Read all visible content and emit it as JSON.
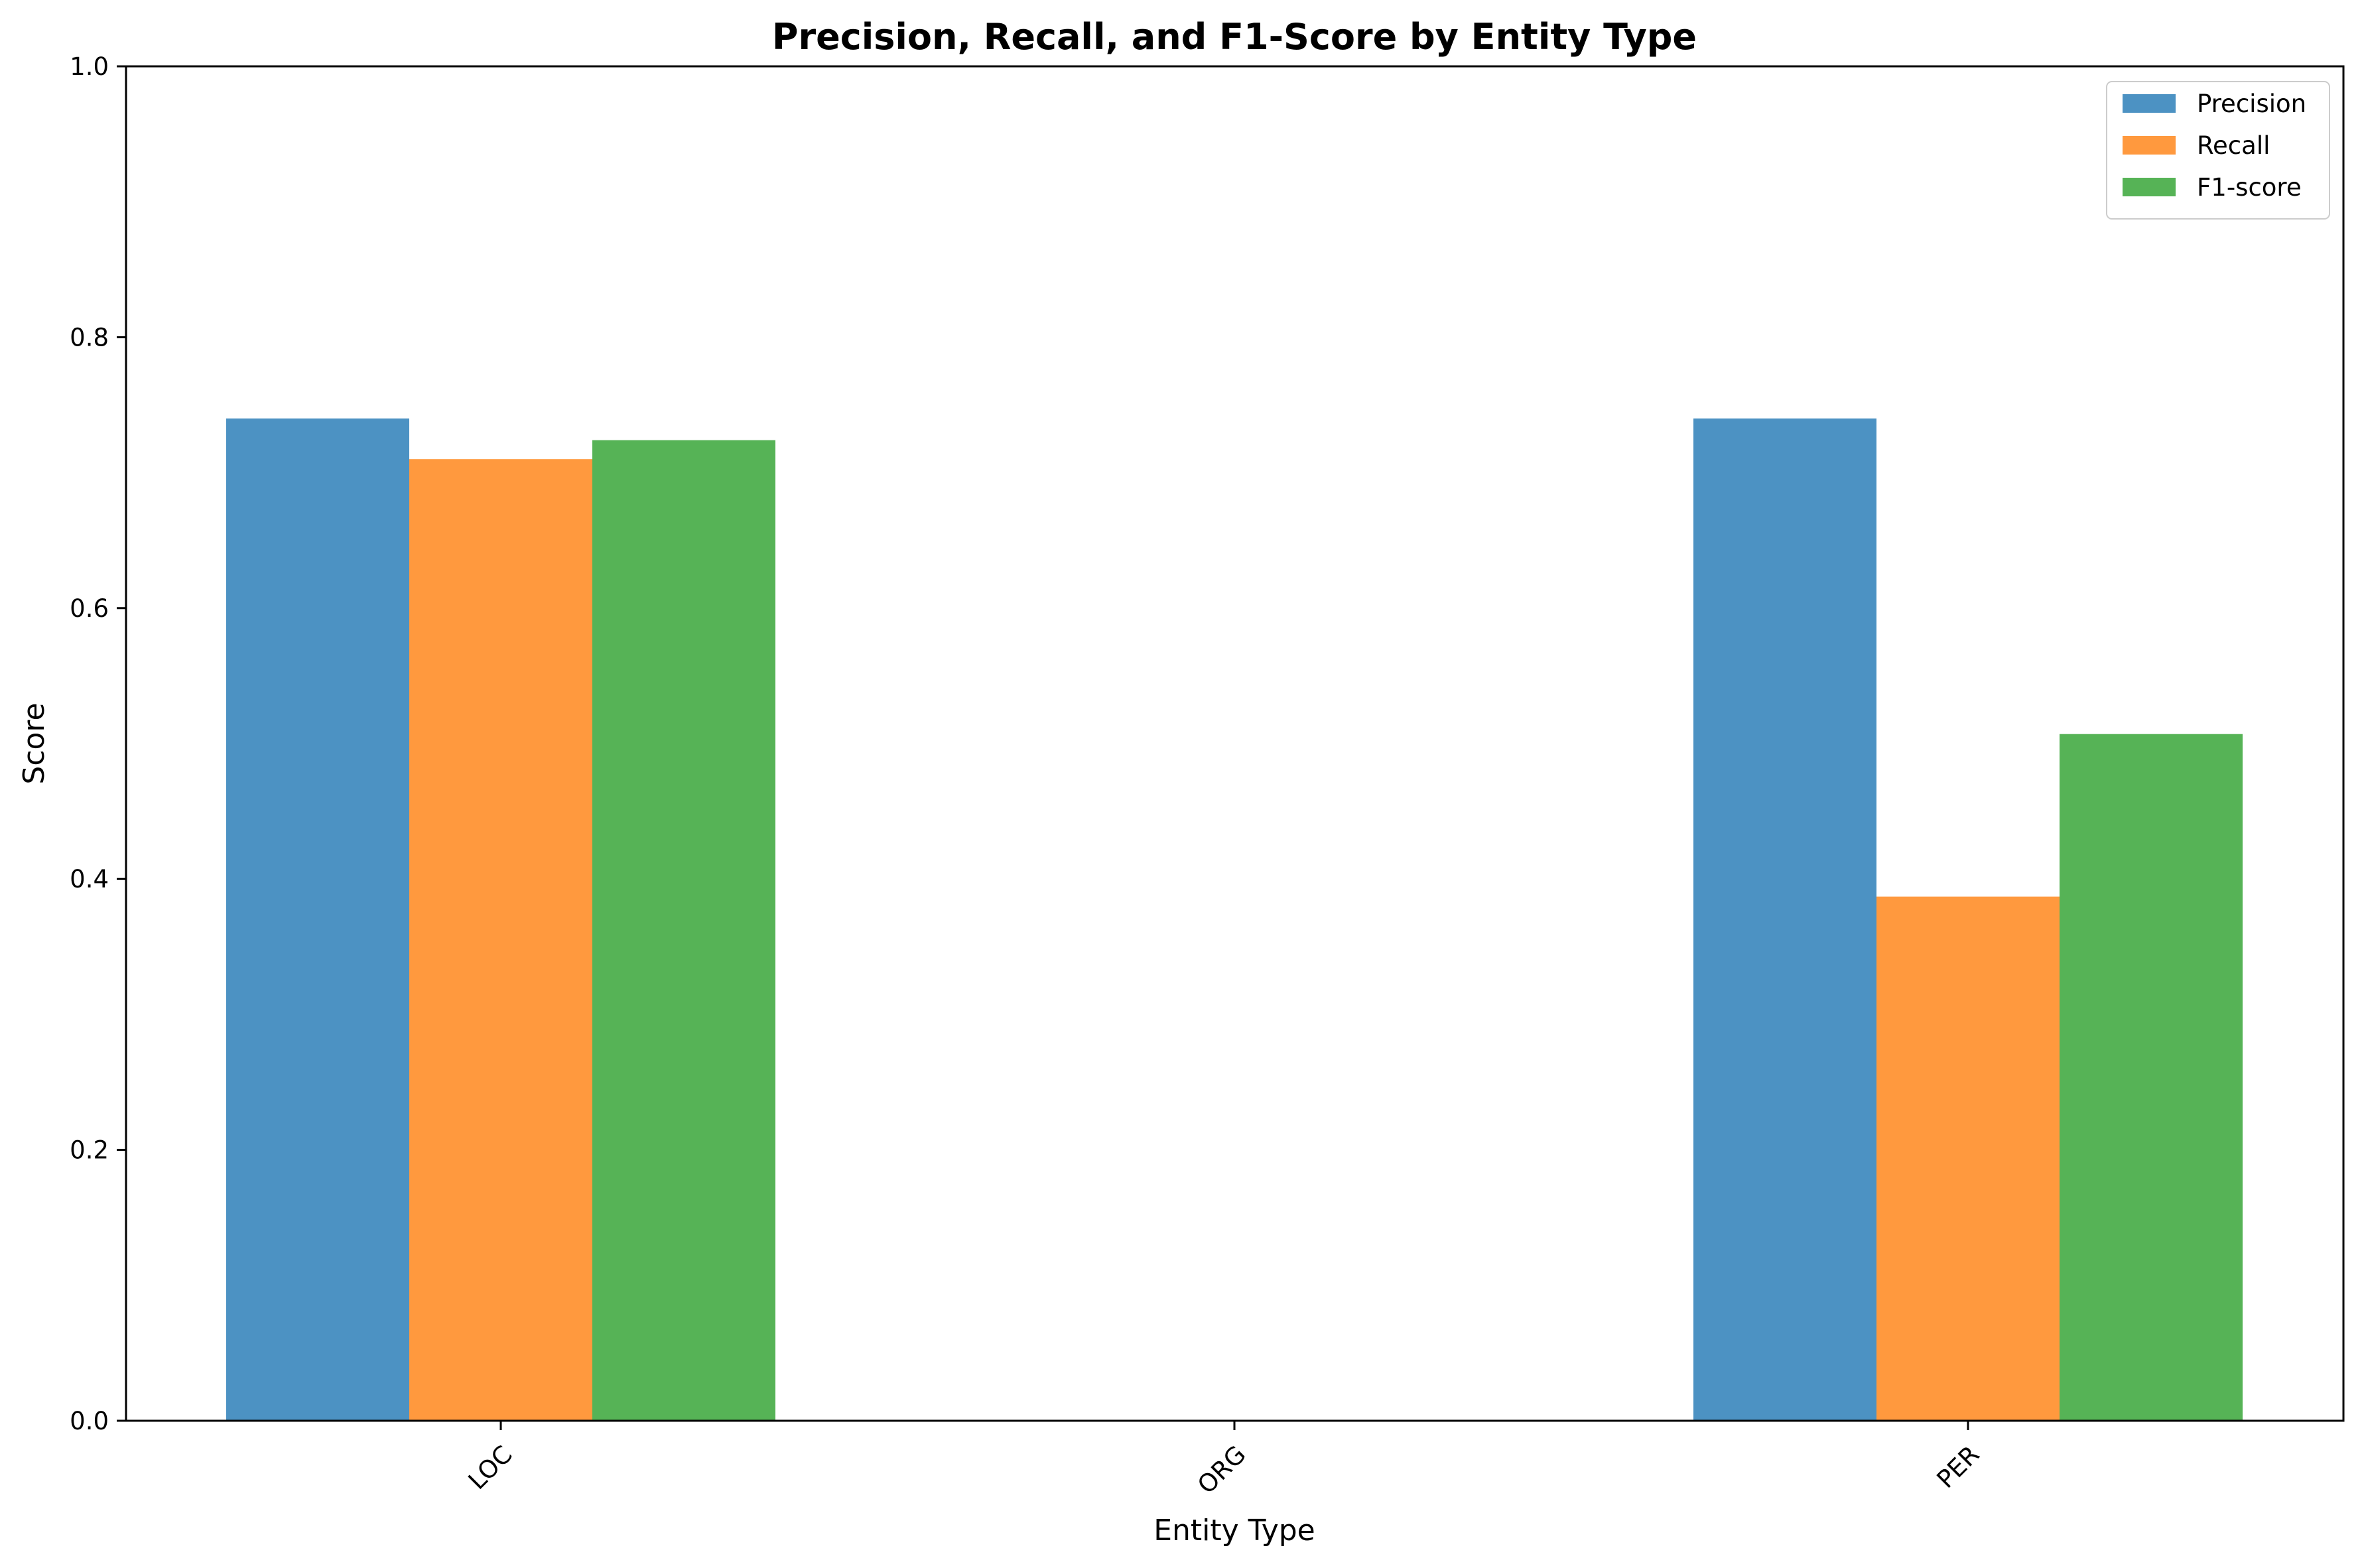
{
  "chart_data": {
    "type": "bar",
    "title": "Precision, Recall, and F1-Score by Entity Type",
    "xlabel": "Entity Type",
    "ylabel": "Score",
    "ylim": [
      0,
      1.0
    ],
    "yticks": [
      "0.0",
      "0.2",
      "0.4",
      "0.6",
      "0.8",
      "1.0"
    ],
    "categories": [
      "LOC",
      "ORG",
      "PER"
    ],
    "series": [
      {
        "name": "Precision",
        "color": "#1f77b4",
        "values": [
          0.74,
          0.0,
          0.74
        ]
      },
      {
        "name": "Recall",
        "color": "#ff7f0e",
        "values": [
          0.71,
          0.0,
          0.387
        ]
      },
      {
        "name": "F1-score",
        "color": "#2ca02c",
        "values": [
          0.724,
          0.0,
          0.507
        ]
      }
    ],
    "bar_opacity": 0.8,
    "grid": false,
    "legend_position": "top-right"
  }
}
